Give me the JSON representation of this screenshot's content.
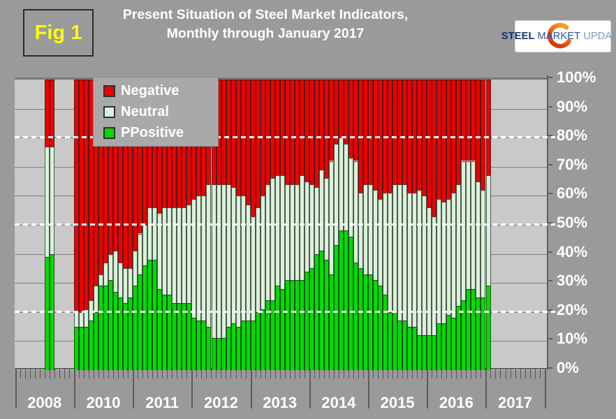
{
  "figure_label": "Fig 1",
  "title_line1": "Present Situation of Steel Market Indicators,",
  "title_line2": "Monthly through January 2017",
  "logo": {
    "word1": "STEEL",
    "word2": "MARKET",
    "word3": "UPDATE"
  },
  "legend": [
    {
      "label": "Negative",
      "color": "#ee0000"
    },
    {
      "label": "Neutral",
      "color": "#d9f2d9"
    },
    {
      "label": "PPositive",
      "color": "#00dc00"
    }
  ],
  "colors": {
    "page_background": "#9a9a9a",
    "plot_background": "#c9c9c9",
    "positive": "#00dc00",
    "neutral": "#d9f2d9",
    "negative": "#ee0000",
    "figure_label_text": "#ffff00",
    "axis_text": "#ffffff",
    "dashed_gridline": "#ffffff"
  },
  "y_axis": {
    "labels": [
      "100%",
      "90%",
      "80%",
      "70%",
      "60%",
      "50%",
      "40%",
      "30%",
      "20%",
      "10%",
      "0%"
    ]
  },
  "x_axis": {
    "years": [
      "2008",
      "2010",
      "2011",
      "2012",
      "2013",
      "2014",
      "2015",
      "2016",
      "2017"
    ]
  },
  "chart_data": {
    "type": "bar",
    "stacked": true,
    "unit": "percent of respondents",
    "title": "Present Situation of Steel Market Indicators, Monthly through January 2017",
    "ylim": [
      0,
      100
    ],
    "dashed_gridlines_pct": [
      20,
      50,
      80
    ],
    "solid_gridline_step_pct": 10,
    "legend_position": "top-left",
    "note": "Two bars in late 2008, survey gap during 2009, continuous monthly bars Jan 2010 - Jan 2017",
    "bars_2008": {
      "x": [
        "2008-11",
        "2008-12"
      ],
      "positive": [
        39,
        40
      ],
      "neutral": [
        38,
        37
      ],
      "negative": [
        23,
        23
      ]
    },
    "x_start": "2010-01",
    "x_end": "2017-01",
    "interval": "monthly",
    "series": [
      {
        "name": "Positive",
        "color": "#00dc00",
        "values": [
          15,
          15,
          15,
          17,
          20,
          29,
          29,
          31,
          27,
          25,
          23,
          25,
          29,
          33,
          36,
          38,
          38,
          28,
          26,
          26,
          23,
          23,
          23,
          23,
          18,
          17,
          17,
          15,
          11,
          11,
          11,
          15,
          16,
          15,
          17,
          17,
          17,
          20,
          21,
          24,
          24,
          29,
          28,
          31,
          31,
          31,
          31,
          34,
          35,
          40,
          41,
          38,
          33,
          43,
          48,
          48,
          46,
          37,
          35,
          33,
          33,
          31,
          29,
          26,
          20,
          20,
          17,
          17,
          15,
          15,
          12,
          12,
          12,
          12,
          16,
          16,
          19,
          18,
          22,
          24,
          28,
          28,
          25,
          25,
          29
        ]
      },
      {
        "name": "Neutral",
        "color": "#d9f2d9",
        "values": [
          5,
          5,
          6,
          7,
          9,
          4,
          8,
          9,
          14,
          12,
          12,
          10,
          12,
          14,
          14,
          18,
          18,
          26,
          30,
          30,
          33,
          33,
          33,
          34,
          41,
          43,
          43,
          49,
          53,
          53,
          53,
          49,
          47,
          45,
          43,
          40,
          36,
          36,
          39,
          40,
          42,
          38,
          39,
          33,
          33,
          33,
          36,
          31,
          29,
          23,
          28,
          28,
          39,
          35,
          32,
          30,
          27,
          35,
          26,
          31,
          31,
          31,
          30,
          35,
          41,
          44,
          47,
          47,
          46,
          46,
          50,
          48,
          44,
          41,
          43,
          42,
          40,
          43,
          42,
          48,
          44,
          44,
          40,
          37,
          38
        ]
      },
      {
        "name": "Negative",
        "color": "#ee0000",
        "values": [
          80,
          80,
          79,
          76,
          71,
          67,
          63,
          60,
          59,
          63,
          65,
          65,
          59,
          53,
          50,
          44,
          44,
          46,
          44,
          44,
          44,
          44,
          44,
          43,
          41,
          40,
          40,
          36,
          36,
          36,
          36,
          36,
          37,
          40,
          40,
          43,
          47,
          44,
          40,
          36,
          34,
          33,
          33,
          36,
          36,
          36,
          33,
          35,
          36,
          37,
          31,
          34,
          28,
          22,
          20,
          22,
          27,
          28,
          39,
          36,
          36,
          38,
          41,
          39,
          39,
          36,
          36,
          36,
          39,
          39,
          38,
          40,
          44,
          47,
          41,
          42,
          41,
          39,
          36,
          28,
          28,
          28,
          35,
          38,
          33
        ]
      }
    ]
  }
}
